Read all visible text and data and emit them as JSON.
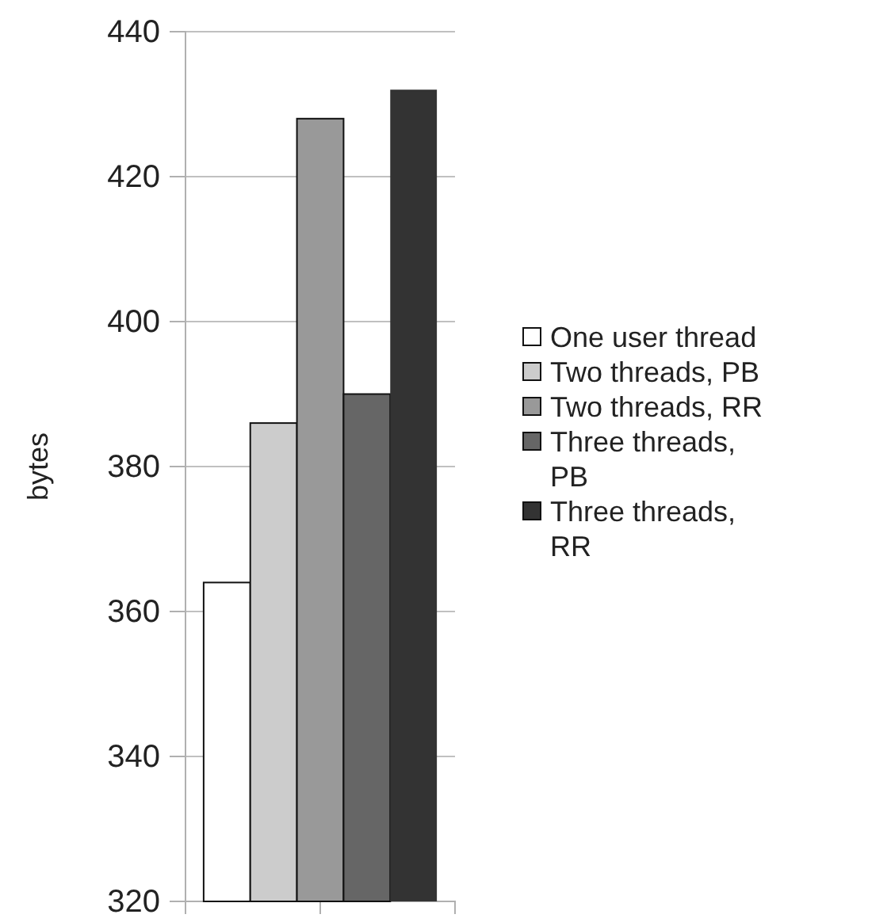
{
  "chart_data": {
    "type": "bar",
    "ylabel": "bytes",
    "categories": [
      null
    ],
    "series": [
      {
        "name": "One user thread",
        "color": "#ffffff",
        "values": [
          364
        ]
      },
      {
        "name": "Two threads, PB",
        "color": "#cccccc",
        "values": [
          386
        ]
      },
      {
        "name": "Two threads, RR",
        "color": "#999999",
        "values": [
          428
        ]
      },
      {
        "name": "Three threads, PB",
        "color": "#666666",
        "values": [
          390
        ]
      },
      {
        "name": "Three threads, RR",
        "color": "#333333",
        "values": [
          432
        ]
      }
    ],
    "ylim": [
      320,
      440
    ],
    "yticks": [
      320,
      340,
      360,
      380,
      400,
      420,
      440
    ],
    "grid": "y",
    "legend": "right"
  }
}
